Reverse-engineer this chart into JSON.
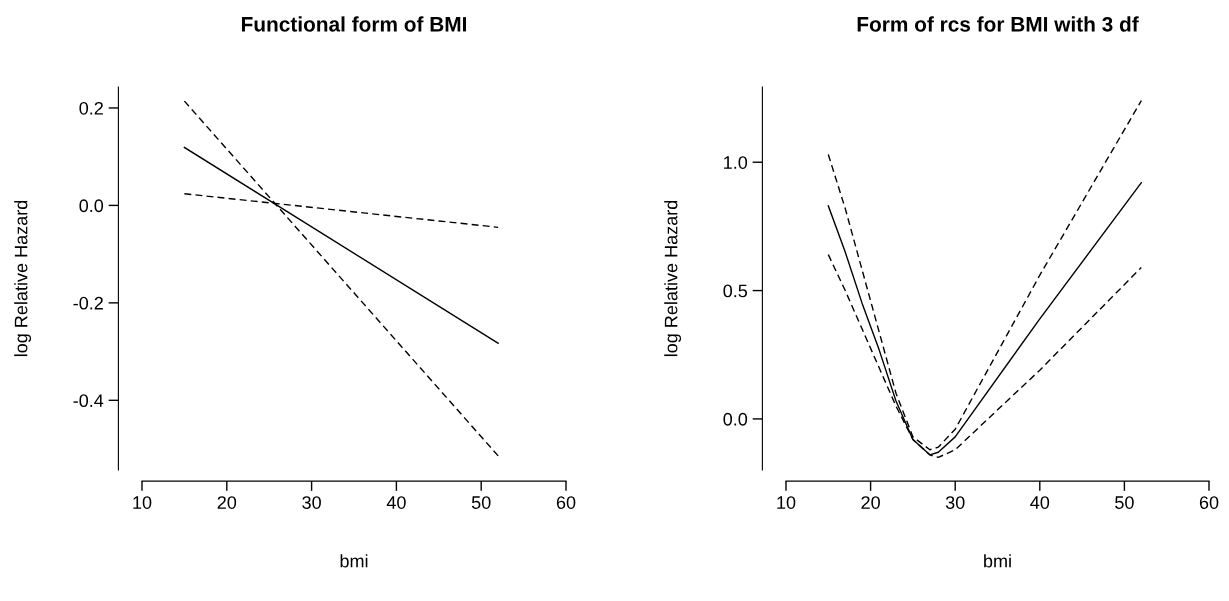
{
  "chart_data": [
    {
      "type": "line",
      "title": "Functional form of BMI",
      "xlabel": "bmi",
      "ylabel": "log Relative Hazard",
      "x": [
        15,
        52
      ],
      "xlim": [
        10,
        60
      ],
      "xticks": [
        10,
        20,
        30,
        40,
        50,
        60
      ],
      "ylim": [
        -0.543,
        0.243
      ],
      "yticks": [
        {
          "value": -0.4,
          "label": "-0.4"
        },
        {
          "value": -0.2,
          "label": "-0.2"
        },
        {
          "value": 0.0,
          "label": "0.0"
        },
        {
          "value": 0.2,
          "label": "0.2"
        }
      ],
      "grid": false,
      "legend": false,
      "series": [
        {
          "color": "#000000",
          "line_style": "solid",
          "values": [
            0.119,
            -0.283
          ]
        },
        {
          "color": "#000000",
          "line_style": "dashed",
          "values": [
            0.024,
            -0.045
          ]
        },
        {
          "color": "#000000",
          "line_style": "dashed",
          "values": [
            0.214,
            -0.514
          ]
        }
      ]
    },
    {
      "type": "line",
      "title": "Form of rcs for BMI with 3 df",
      "xlabel": "bmi",
      "ylabel": "log Relative Hazard",
      "x": [
        15,
        17,
        19,
        21,
        23,
        25,
        27,
        28,
        30,
        40,
        52
      ],
      "xlim": [
        10,
        60
      ],
      "xticks": [
        10,
        20,
        30,
        40,
        50,
        60
      ],
      "ylim": [
        -0.199,
        1.293
      ],
      "yticks": [
        {
          "value": 0.0,
          "label": "0.0"
        },
        {
          "value": 0.5,
          "label": "0.5"
        },
        {
          "value": 1.0,
          "label": "1.0"
        }
      ],
      "grid": false,
      "legend": false,
      "series": [
        {
          "color": "#000000",
          "line_style": "solid",
          "values": [
            0.83,
            0.65,
            0.45,
            0.27,
            0.07,
            -0.08,
            -0.14,
            -0.13,
            -0.07,
            0.39,
            0.92
          ]
        },
        {
          "color": "#000000",
          "line_style": "dashed",
          "values": [
            1.03,
            0.82,
            0.58,
            0.34,
            0.1,
            -0.07,
            -0.12,
            -0.11,
            -0.04,
            0.56,
            1.24
          ]
        },
        {
          "color": "#000000",
          "line_style": "dashed",
          "values": [
            0.64,
            0.5,
            0.35,
            0.2,
            0.05,
            -0.08,
            -0.14,
            -0.15,
            -0.12,
            0.19,
            0.59
          ]
        }
      ]
    }
  ]
}
